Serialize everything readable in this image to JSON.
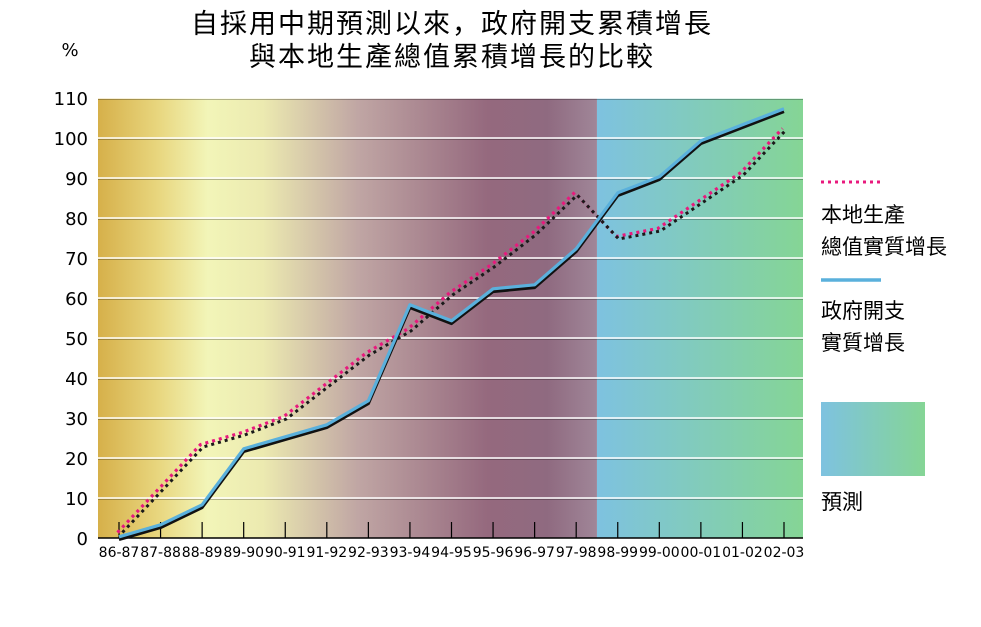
{
  "chart_data": {
    "type": "line",
    "title": [
      "自採用中期預測以來，政府開支累積增長",
      "與本地生產總值累積增長的比較"
    ],
    "ylabel": "%",
    "ylim": [
      0,
      110
    ],
    "yticks": [
      0,
      10,
      20,
      30,
      40,
      50,
      60,
      70,
      80,
      90,
      100,
      110
    ],
    "categories": [
      "86-87",
      "87-88",
      "88-89",
      "89-90",
      "90-91",
      "91-92",
      "92-93",
      "93-94",
      "94-95",
      "95-96",
      "96-97",
      "97-98",
      "98-99",
      "99-00",
      "00-01",
      "01-02",
      "02-03"
    ],
    "grid": true,
    "legend_position": "right",
    "series": [
      {
        "name": [
          "本地生產",
          "總值實質增長"
        ],
        "style": "dotted",
        "color": "#e8197d",
        "values": [
          1,
          12,
          23,
          26,
          30,
          38,
          46,
          52,
          61,
          68,
          76,
          86,
          75,
          77,
          84,
          91,
          102
        ]
      },
      {
        "name": [
          "政府開支",
          "實質增長"
        ],
        "style": "solid",
        "color": "#5ab0dc",
        "values": [
          0,
          3,
          8,
          22,
          25,
          28,
          34,
          58,
          54,
          62,
          63,
          72,
          86,
          90,
          99,
          103,
          107
        ]
      }
    ],
    "forecast": {
      "label": "預測",
      "from_category": "98-99",
      "to_category": "02-03"
    }
  },
  "colors": {
    "bg_gold": "#d9b54c",
    "bg_pale": "#f0f3b6",
    "bg_mauve": "#946a7e",
    "forecast_blue": "#7fc3df",
    "forecast_green": "#86d598",
    "grid": "#ffffff"
  }
}
